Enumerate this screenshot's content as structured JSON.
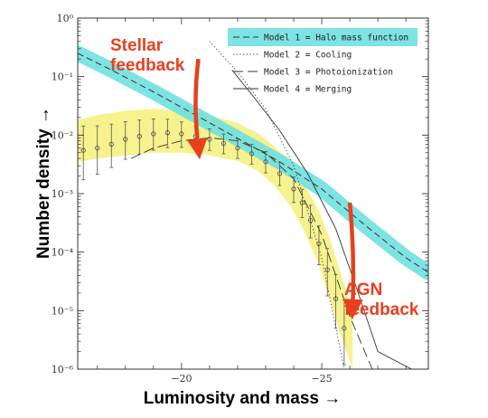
{
  "chart_data": {
    "type": "line",
    "xlabel": "Luminosity and mass →",
    "ylabel": "Number density →",
    "xlim": [
      -16.3,
      -28.8
    ],
    "ylim": [
      1e-06,
      1
    ],
    "y_scale": "log",
    "x_ticks": [
      {
        "value": -20,
        "label": "−20"
      },
      {
        "value": -25,
        "label": "−25"
      }
    ],
    "y_ticks": [
      {
        "value": 1,
        "label": "10⁰"
      },
      {
        "value": 0.1,
        "label": "10⁻¹"
      },
      {
        "value": 0.01,
        "label": "10⁻²"
      },
      {
        "value": 0.001,
        "label": "10⁻³"
      },
      {
        "value": 0.0001,
        "label": "10⁻⁴"
      },
      {
        "value": 1e-05,
        "label": "10⁻⁵"
      },
      {
        "value": 1e-06,
        "label": "10⁻⁶"
      }
    ],
    "grid": false,
    "legend_position": "top-right",
    "series": [
      {
        "name": "Model 1 = Halo mass function",
        "style": "dashed",
        "highlight": "cyan",
        "x": [
          -16.3,
          -17.5,
          -19,
          -20.5,
          -22,
          -23.5,
          -25,
          -26.5,
          -28,
          -28.8
        ],
        "y": [
          0.25,
          0.13,
          0.055,
          0.022,
          0.0088,
          0.0035,
          0.0012,
          0.0003,
          8e-05,
          4.5e-05
        ]
      },
      {
        "name": "Model 2 = Cooling",
        "style": "dotted",
        "x": [
          -21,
          -22,
          -23,
          -24,
          -25,
          -25.8
        ],
        "y": [
          0.4,
          0.12,
          0.028,
          0.003,
          8e-05,
          1e-06
        ]
      },
      {
        "name": "Model 3 = Photoionization",
        "style": "long-dash",
        "x": [
          -18.2,
          -19,
          -20,
          -21,
          -22,
          -23,
          -24,
          -25,
          -26,
          -26.8
        ],
        "y": [
          0.004,
          0.006,
          0.008,
          0.009,
          0.008,
          0.005,
          0.0018,
          0.0002,
          8e-06,
          1e-06
        ]
      },
      {
        "name": "Model 4 = Merging",
        "style": "solid",
        "x": [
          -21.8,
          -22.5,
          -23.5,
          -24.5,
          -25.5,
          -26.3,
          -27,
          -28.2
        ],
        "y": [
          0.13,
          0.05,
          0.012,
          0.0022,
          0.00025,
          2e-05,
          2e-06,
          1e-06
        ]
      }
    ],
    "observed": {
      "x": [
        -16.5,
        -17,
        -17.5,
        -18,
        -18.5,
        -19,
        -19.5,
        -20,
        -20.5,
        -21,
        -21.5,
        -22,
        -22.5,
        -23,
        -23.5,
        -24,
        -24.3,
        -24.6,
        -24.9,
        -25.2,
        -25.5,
        -25.8
      ],
      "y": [
        0.0055,
        0.006,
        0.007,
        0.0085,
        0.0095,
        0.0105,
        0.011,
        0.0105,
        0.0095,
        0.0085,
        0.0072,
        0.006,
        0.0048,
        0.0035,
        0.0022,
        0.0012,
        0.0007,
        0.00035,
        0.00014,
        5e-05,
        1.6e-05,
        5e-06
      ],
      "err_up": [
        2.6,
        2.4,
        2.2,
        2,
        1.9,
        1.8,
        1.7,
        1.6,
        1.5,
        1.5,
        1.45,
        1.45,
        1.45,
        1.5,
        1.55,
        1.6,
        1.7,
        1.8,
        2,
        2.3,
        2.6,
        3
      ],
      "err_down": [
        3.2,
        2.8,
        2.5,
        2.2,
        2,
        1.9,
        1.8,
        1.7,
        1.6,
        1.55,
        1.5,
        1.5,
        1.5,
        1.55,
        1.6,
        1.7,
        1.8,
        2,
        2.3,
        2.8,
        3.2,
        4.2
      ],
      "band_x": [
        -16.3,
        -17,
        -18,
        -19,
        -20,
        -21,
        -22,
        -22.7,
        -23.3,
        -23.9,
        -24.4,
        -24.9,
        -25.3,
        -25.7,
        -26.1
      ],
      "band_upper": [
        0.018,
        0.022,
        0.026,
        0.028,
        0.026,
        0.022,
        0.016,
        0.011,
        0.0065,
        0.0032,
        0.0014,
        0.0005,
        0.00016,
        4e-05,
        9e-06
      ],
      "band_lower": [
        0.0035,
        0.004,
        0.0045,
        0.005,
        0.005,
        0.0045,
        0.0036,
        0.0025,
        0.0014,
        0.0006,
        0.00022,
        6e-05,
        1.5e-05,
        3.5e-06,
        1e-06
      ]
    },
    "annotations": [
      {
        "text": [
          "Stellar",
          "feedback"
        ],
        "arrow_from": [
          -20.6,
          0.2
        ],
        "arrow_to": [
          -20.6,
          0.006
        ]
      },
      {
        "text": [
          "AGN",
          "feedback"
        ],
        "arrow_from": [
          -26,
          0.0007
        ],
        "arrow_to": [
          -26.1,
          1.1e-05
        ]
      }
    ]
  },
  "colors": {
    "band": "#f5f07a",
    "halo_highlight": "#6fe0e0",
    "annotation": "#e8401e",
    "axis": "#333333",
    "lines": "#333333"
  }
}
